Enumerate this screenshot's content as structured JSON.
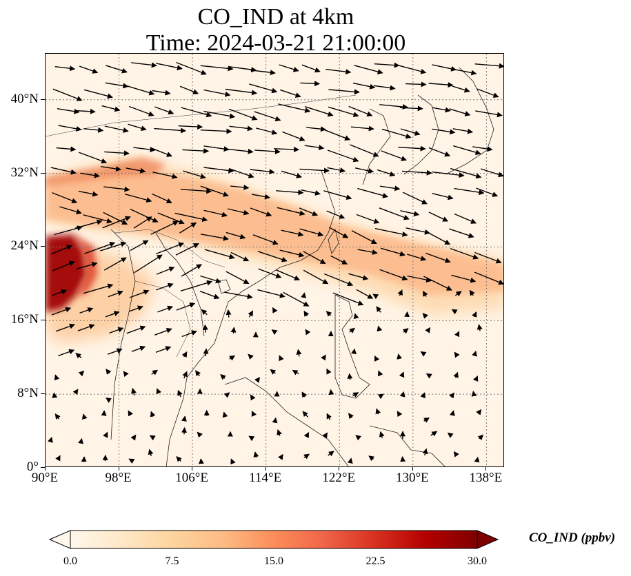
{
  "title": {
    "line1": "CO_IND at 4km",
    "line2": "Time: 2024-03-21 21:00:00"
  },
  "map": {
    "lon_range": [
      90,
      140
    ],
    "lat_range": [
      0,
      45
    ],
    "lat_ticks": [
      {
        "value": 0,
        "label": "0°"
      },
      {
        "value": 8,
        "label": "8°N"
      },
      {
        "value": 16,
        "label": "16°N"
      },
      {
        "value": 24,
        "label": "24°N"
      },
      {
        "value": 32,
        "label": "32°N"
      },
      {
        "value": 40,
        "label": "40°N"
      }
    ],
    "lon_ticks": [
      {
        "value": 90,
        "label": "90°E"
      },
      {
        "value": 98,
        "label": "98°E"
      },
      {
        "value": 106,
        "label": "106°E"
      },
      {
        "value": 114,
        "label": "114°E"
      },
      {
        "value": 122,
        "label": "122°E"
      },
      {
        "value": 130,
        "label": "130°E"
      },
      {
        "value": 138,
        "label": "138°E"
      }
    ],
    "gridlines": true,
    "field": "CO_IND",
    "colormap": "OrRd",
    "background_color": "#fff4e6",
    "wind_vectors": true
  },
  "colorbar": {
    "label": "CO_IND (ppbv)",
    "ticks": [
      "0.0",
      "7.5",
      "15.0",
      "22.5",
      "30.0"
    ],
    "min": 0,
    "max": 30,
    "extend": "both",
    "colors": [
      "#fff7ec",
      "#fee8c8",
      "#fdd49e",
      "#fdbb84",
      "#fc8d59",
      "#ef6548",
      "#d7301f",
      "#b30000",
      "#7f0000"
    ]
  }
}
